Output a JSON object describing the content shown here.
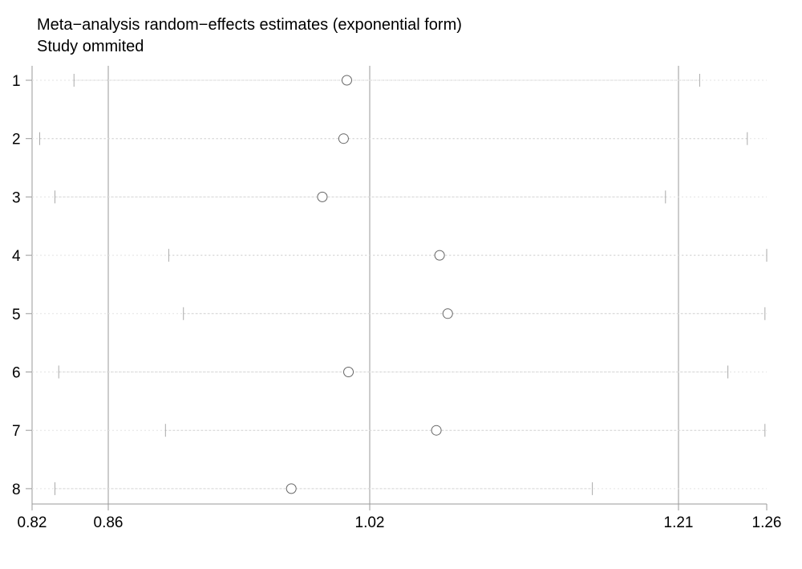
{
  "chart_data": {
    "type": "forest",
    "title": "Meta−analysis random−effects estimates (exponential form)",
    "subtitle": "Study ommited",
    "x_ticks": [
      "0.82",
      "0.86",
      "1.02",
      "1.21",
      "1.26"
    ],
    "x_tick_values": [
      0.82,
      0.86,
      1.02,
      1.21,
      1.26
    ],
    "reference_lines": [
      0.86,
      1.02,
      1.21
    ],
    "xlim": [
      0.82,
      1.26
    ],
    "studies": [
      {
        "label": "1",
        "estimate": 1.006,
        "lower": 0.842,
        "upper": 1.222
      },
      {
        "label": "2",
        "estimate": 1.004,
        "lower": 0.824,
        "upper": 1.249
      },
      {
        "label": "3",
        "estimate": 0.991,
        "lower": 0.832,
        "upper": 1.202
      },
      {
        "label": "4",
        "estimate": 1.063,
        "lower": 0.897,
        "upper": 1.26
      },
      {
        "label": "5",
        "estimate": 1.068,
        "lower": 0.906,
        "upper": 1.259
      },
      {
        "label": "6",
        "estimate": 1.007,
        "lower": 0.834,
        "upper": 1.238
      },
      {
        "label": "7",
        "estimate": 1.061,
        "lower": 0.895,
        "upper": 1.259
      },
      {
        "label": "8",
        "estimate": 0.972,
        "lower": 0.832,
        "upper": 1.157
      }
    ],
    "grid": false,
    "colors": {
      "axis": "#9a9a9a",
      "ci_line": "#d0d0d0",
      "marker": "#666666"
    }
  }
}
